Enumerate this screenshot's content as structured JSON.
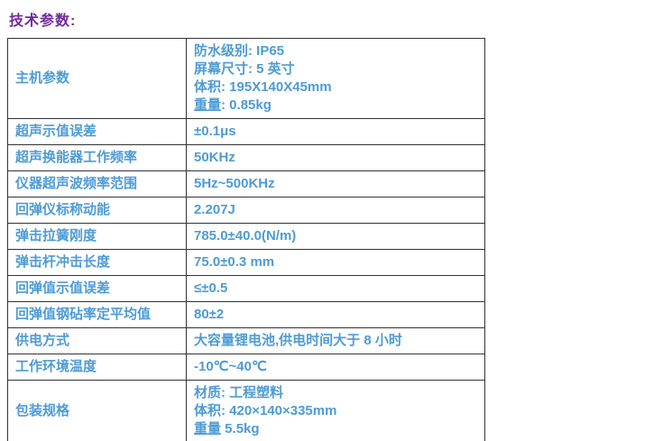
{
  "header": {
    "title": "技术参数:"
  },
  "colors": {
    "title_text": "#71299D",
    "table_text": "#4E9BD5",
    "table_border": "#333333",
    "background": "#FFFFFF"
  },
  "table": {
    "rows": [
      {
        "label": "主机参数",
        "lines": [
          "防水级别: IP65",
          "屏幕尺寸: 5 英寸",
          "体积: 195X140X45mm"
        ],
        "underlined_label": "重量",
        "underlined_rest": ": 0.85kg"
      },
      {
        "label": "超声示值误差",
        "value": "±0.1μs"
      },
      {
        "label": "超声换能器工作频率",
        "value": "50KHz"
      },
      {
        "label": "仪器超声波频率范围",
        "value": "5Hz~500KHz"
      },
      {
        "label": "回弹仪标称动能",
        "value": "2.207J"
      },
      {
        "label": "弹击拉簧刚度",
        "value": "785.0±40.0(N/m)"
      },
      {
        "label": "弹击杆冲击长度",
        "value": "75.0±0.3 mm"
      },
      {
        "label": "回弹值示值误差",
        "value": "≤±0.5"
      },
      {
        "label": "回弹值钢砧率定平均值",
        "value": "80±2"
      },
      {
        "label": "供电方式",
        "value": "大容量锂电池,供电时间大于 8 小时"
      },
      {
        "label": "工作环境温度",
        "value": "-10℃~40℃"
      },
      {
        "label": "包装规格",
        "lines": [
          "材质: 工程塑料",
          "体积: 420×140×335mm"
        ],
        "underlined_label": "重量",
        "underlined_rest": " 5.5kg"
      }
    ]
  }
}
